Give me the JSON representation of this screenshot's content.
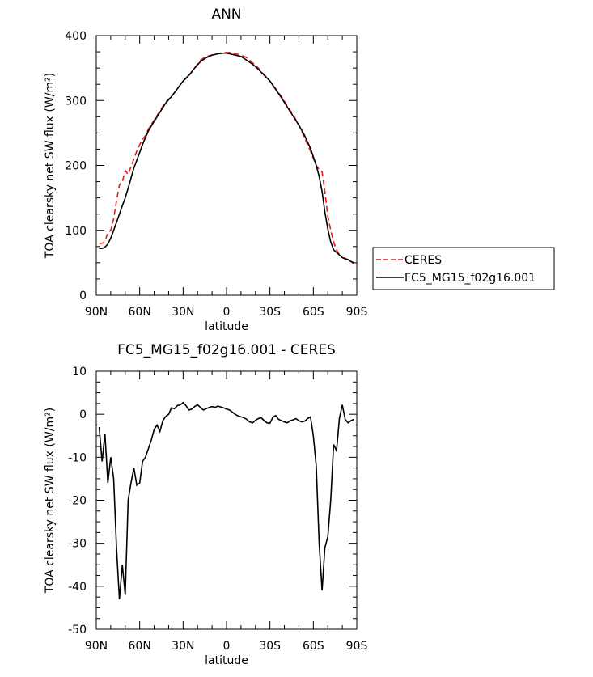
{
  "chart_data": [
    {
      "type": "line",
      "title": "ANN",
      "xlabel": "latitude",
      "ylabel": "TOA clearsky net SW flux (W/m²)",
      "ylim": [
        0,
        400
      ],
      "yticks": [
        "0",
        "100",
        "200",
        "300",
        "400"
      ],
      "xlim": [
        90,
        -90
      ],
      "xticks": [
        {
          "v": 90,
          "label": "90N"
        },
        {
          "v": 60,
          "label": "60N"
        },
        {
          "v": 30,
          "label": "30N"
        },
        {
          "v": 0,
          "label": "0"
        },
        {
          "v": -30,
          "label": "30S"
        },
        {
          "v": -60,
          "label": "60S"
        },
        {
          "v": -90,
          "label": "90S"
        }
      ],
      "legend_position": "right",
      "series": [
        {
          "name": "CERES",
          "color": "#e41a1c",
          "dash": "dashed",
          "points": [
            [
              88,
              80
            ],
            [
              86,
              80
            ],
            [
              84,
              82
            ],
            [
              82,
              97
            ],
            [
              80,
              100
            ],
            [
              78,
              118
            ],
            [
              76,
              145
            ],
            [
              74,
              170
            ],
            [
              72,
              175
            ],
            [
              70,
              192
            ],
            [
              68,
              186
            ],
            [
              66,
              198
            ],
            [
              64,
              210
            ],
            [
              62,
              222
            ],
            [
              60,
              232
            ],
            [
              58,
              240
            ],
            [
              56,
              246
            ],
            [
              54,
              256
            ],
            [
              50,
              270
            ],
            [
              46,
              284
            ],
            [
              42,
              298
            ],
            [
              38,
              306
            ],
            [
              34,
              318
            ],
            [
              30,
              330
            ],
            [
              26,
              338
            ],
            [
              22,
              350
            ],
            [
              18,
              362
            ],
            [
              14,
              368
            ],
            [
              10,
              370
            ],
            [
              6,
              372
            ],
            [
              2,
              374
            ],
            [
              0,
              374
            ],
            [
              -2,
              374
            ],
            [
              -6,
              372
            ],
            [
              -10,
              370
            ],
            [
              -14,
              366
            ],
            [
              -18,
              358
            ],
            [
              -22,
              350
            ],
            [
              -26,
              340
            ],
            [
              -30,
              330
            ],
            [
              -34,
              318
            ],
            [
              -38,
              306
            ],
            [
              -42,
              292
            ],
            [
              -46,
              278
            ],
            [
              -50,
              262
            ],
            [
              -54,
              242
            ],
            [
              -58,
              222
            ],
            [
              -62,
              200
            ],
            [
              -64,
              194
            ],
            [
              -66,
              190
            ],
            [
              -68,
              160
            ],
            [
              -70,
              122
            ],
            [
              -72,
              100
            ],
            [
              -74,
              82
            ],
            [
              -76,
              70
            ],
            [
              -78,
              62
            ],
            [
              -80,
              58
            ],
            [
              -82,
              57
            ],
            [
              -84,
              55
            ],
            [
              -86,
              52
            ],
            [
              -88,
              48
            ]
          ]
        },
        {
          "name": "FC5_MG15_f02g16.001",
          "color": "#000000",
          "dash": "solid",
          "points": [
            [
              88,
              72
            ],
            [
              86,
              72
            ],
            [
              84,
              74
            ],
            [
              82,
              79
            ],
            [
              80,
              88
            ],
            [
              78,
              100
            ],
            [
              76,
              112
            ],
            [
              74,
              125
            ],
            [
              72,
              138
            ],
            [
              70,
              150
            ],
            [
              68,
              165
            ],
            [
              66,
              180
            ],
            [
              64,
              196
            ],
            [
              62,
              208
            ],
            [
              60,
              220
            ],
            [
              58,
              232
            ],
            [
              56,
              243
            ],
            [
              54,
              253
            ],
            [
              50,
              268
            ],
            [
              46,
              282
            ],
            [
              42,
              296
            ],
            [
              38,
              306
            ],
            [
              34,
              318
            ],
            [
              30,
              330
            ],
            [
              26,
              339
            ],
            [
              22,
              350
            ],
            [
              18,
              360
            ],
            [
              14,
              366
            ],
            [
              10,
              370
            ],
            [
              6,
              372
            ],
            [
              2,
              373
            ],
            [
              0,
              373
            ],
            [
              -2,
              372
            ],
            [
              -6,
              370
            ],
            [
              -10,
              368
            ],
            [
              -14,
              362
            ],
            [
              -18,
              356
            ],
            [
              -22,
              348
            ],
            [
              -26,
              339
            ],
            [
              -30,
              330
            ],
            [
              -34,
              317
            ],
            [
              -38,
              304
            ],
            [
              -42,
              290
            ],
            [
              -46,
              276
            ],
            [
              -50,
              262
            ],
            [
              -54,
              246
            ],
            [
              -58,
              226
            ],
            [
              -62,
              200
            ],
            [
              -64,
              183
            ],
            [
              -66,
              160
            ],
            [
              -68,
              128
            ],
            [
              -70,
              102
            ],
            [
              -72,
              82
            ],
            [
              -74,
              70
            ],
            [
              -76,
              66
            ],
            [
              -78,
              62
            ],
            [
              -80,
              58
            ],
            [
              -82,
              56
            ],
            [
              -84,
              55
            ],
            [
              -86,
              52
            ],
            [
              -88,
              50
            ]
          ]
        }
      ]
    },
    {
      "type": "line",
      "title": "FC5_MG15_f02g16.001 - CERES",
      "xlabel": "latitude",
      "ylabel": "TOA clearsky net SW flux (W/m²)",
      "ylim": [
        -50,
        10
      ],
      "yticks": [
        "-50",
        "-40",
        "-30",
        "-20",
        "-10",
        "0",
        "10"
      ],
      "xlim": [
        90,
        -90
      ],
      "xticks": [
        {
          "v": 90,
          "label": "90N"
        },
        {
          "v": 60,
          "label": "60N"
        },
        {
          "v": 30,
          "label": "30N"
        },
        {
          "v": 0,
          "label": "0"
        },
        {
          "v": -30,
          "label": "30S"
        },
        {
          "v": -60,
          "label": "60S"
        },
        {
          "v": -90,
          "label": "90S"
        }
      ],
      "series": [
        {
          "color": "#000000",
          "dash": "solid",
          "points": [
            [
              88,
              -3
            ],
            [
              86,
              -11
            ],
            [
              84,
              -4.5
            ],
            [
              82,
              -16
            ],
            [
              80,
              -10
            ],
            [
              78,
              -15
            ],
            [
              76,
              -31
            ],
            [
              74,
              -43
            ],
            [
              72,
              -35
            ],
            [
              70,
              -42
            ],
            [
              68,
              -20
            ],
            [
              66,
              -16
            ],
            [
              64,
              -12.5
            ],
            [
              62,
              -16.5
            ],
            [
              60,
              -16
            ],
            [
              58,
              -11
            ],
            [
              56,
              -10
            ],
            [
              54,
              -8
            ],
            [
              52,
              -6
            ],
            [
              50,
              -3.5
            ],
            [
              48,
              -2.5
            ],
            [
              46,
              -4
            ],
            [
              44,
              -1.5
            ],
            [
              42,
              -0.5
            ],
            [
              40,
              0
            ],
            [
              38,
              1.5
            ],
            [
              36,
              1.3
            ],
            [
              34,
              2
            ],
            [
              32,
              2.2
            ],
            [
              30,
              2.7
            ],
            [
              28,
              2
            ],
            [
              26,
              1
            ],
            [
              24,
              1.2
            ],
            [
              22,
              1.8
            ],
            [
              20,
              2.2
            ],
            [
              18,
              1.6
            ],
            [
              16,
              1
            ],
            [
              14,
              1.3
            ],
            [
              12,
              1.6
            ],
            [
              10,
              1.8
            ],
            [
              8,
              1.6
            ],
            [
              6,
              1.9
            ],
            [
              4,
              1.7
            ],
            [
              2,
              1.5
            ],
            [
              0,
              1.2
            ],
            [
              -2,
              1
            ],
            [
              -4,
              0.5
            ],
            [
              -6,
              0
            ],
            [
              -8,
              -0.4
            ],
            [
              -10,
              -0.6
            ],
            [
              -12,
              -0.8
            ],
            [
              -14,
              -1.2
            ],
            [
              -16,
              -1.8
            ],
            [
              -18,
              -2
            ],
            [
              -20,
              -1.4
            ],
            [
              -22,
              -1
            ],
            [
              -24,
              -0.8
            ],
            [
              -26,
              -1.5
            ],
            [
              -28,
              -2
            ],
            [
              -30,
              -2.1
            ],
            [
              -32,
              -0.7
            ],
            [
              -34,
              -0.3
            ],
            [
              -36,
              -1.2
            ],
            [
              -38,
              -1.5
            ],
            [
              -40,
              -1.8
            ],
            [
              -42,
              -2
            ],
            [
              -44,
              -1.5
            ],
            [
              -46,
              -1.3
            ],
            [
              -48,
              -1
            ],
            [
              -50,
              -1.5
            ],
            [
              -52,
              -1.8
            ],
            [
              -54,
              -1.6
            ],
            [
              -56,
              -1
            ],
            [
              -58,
              -0.6
            ],
            [
              -60,
              -5
            ],
            [
              -62,
              -12
            ],
            [
              -64,
              -30
            ],
            [
              -66,
              -41
            ],
            [
              -68,
              -31
            ],
            [
              -70,
              -28.5
            ],
            [
              -72,
              -20
            ],
            [
              -74,
              -7
            ],
            [
              -76,
              -8.5
            ],
            [
              -78,
              -1
            ],
            [
              -80,
              2.2
            ],
            [
              -82,
              -1.2
            ],
            [
              -84,
              -2
            ],
            [
              -86,
              -1.5
            ],
            [
              -88,
              -1.2
            ]
          ]
        }
      ]
    }
  ]
}
